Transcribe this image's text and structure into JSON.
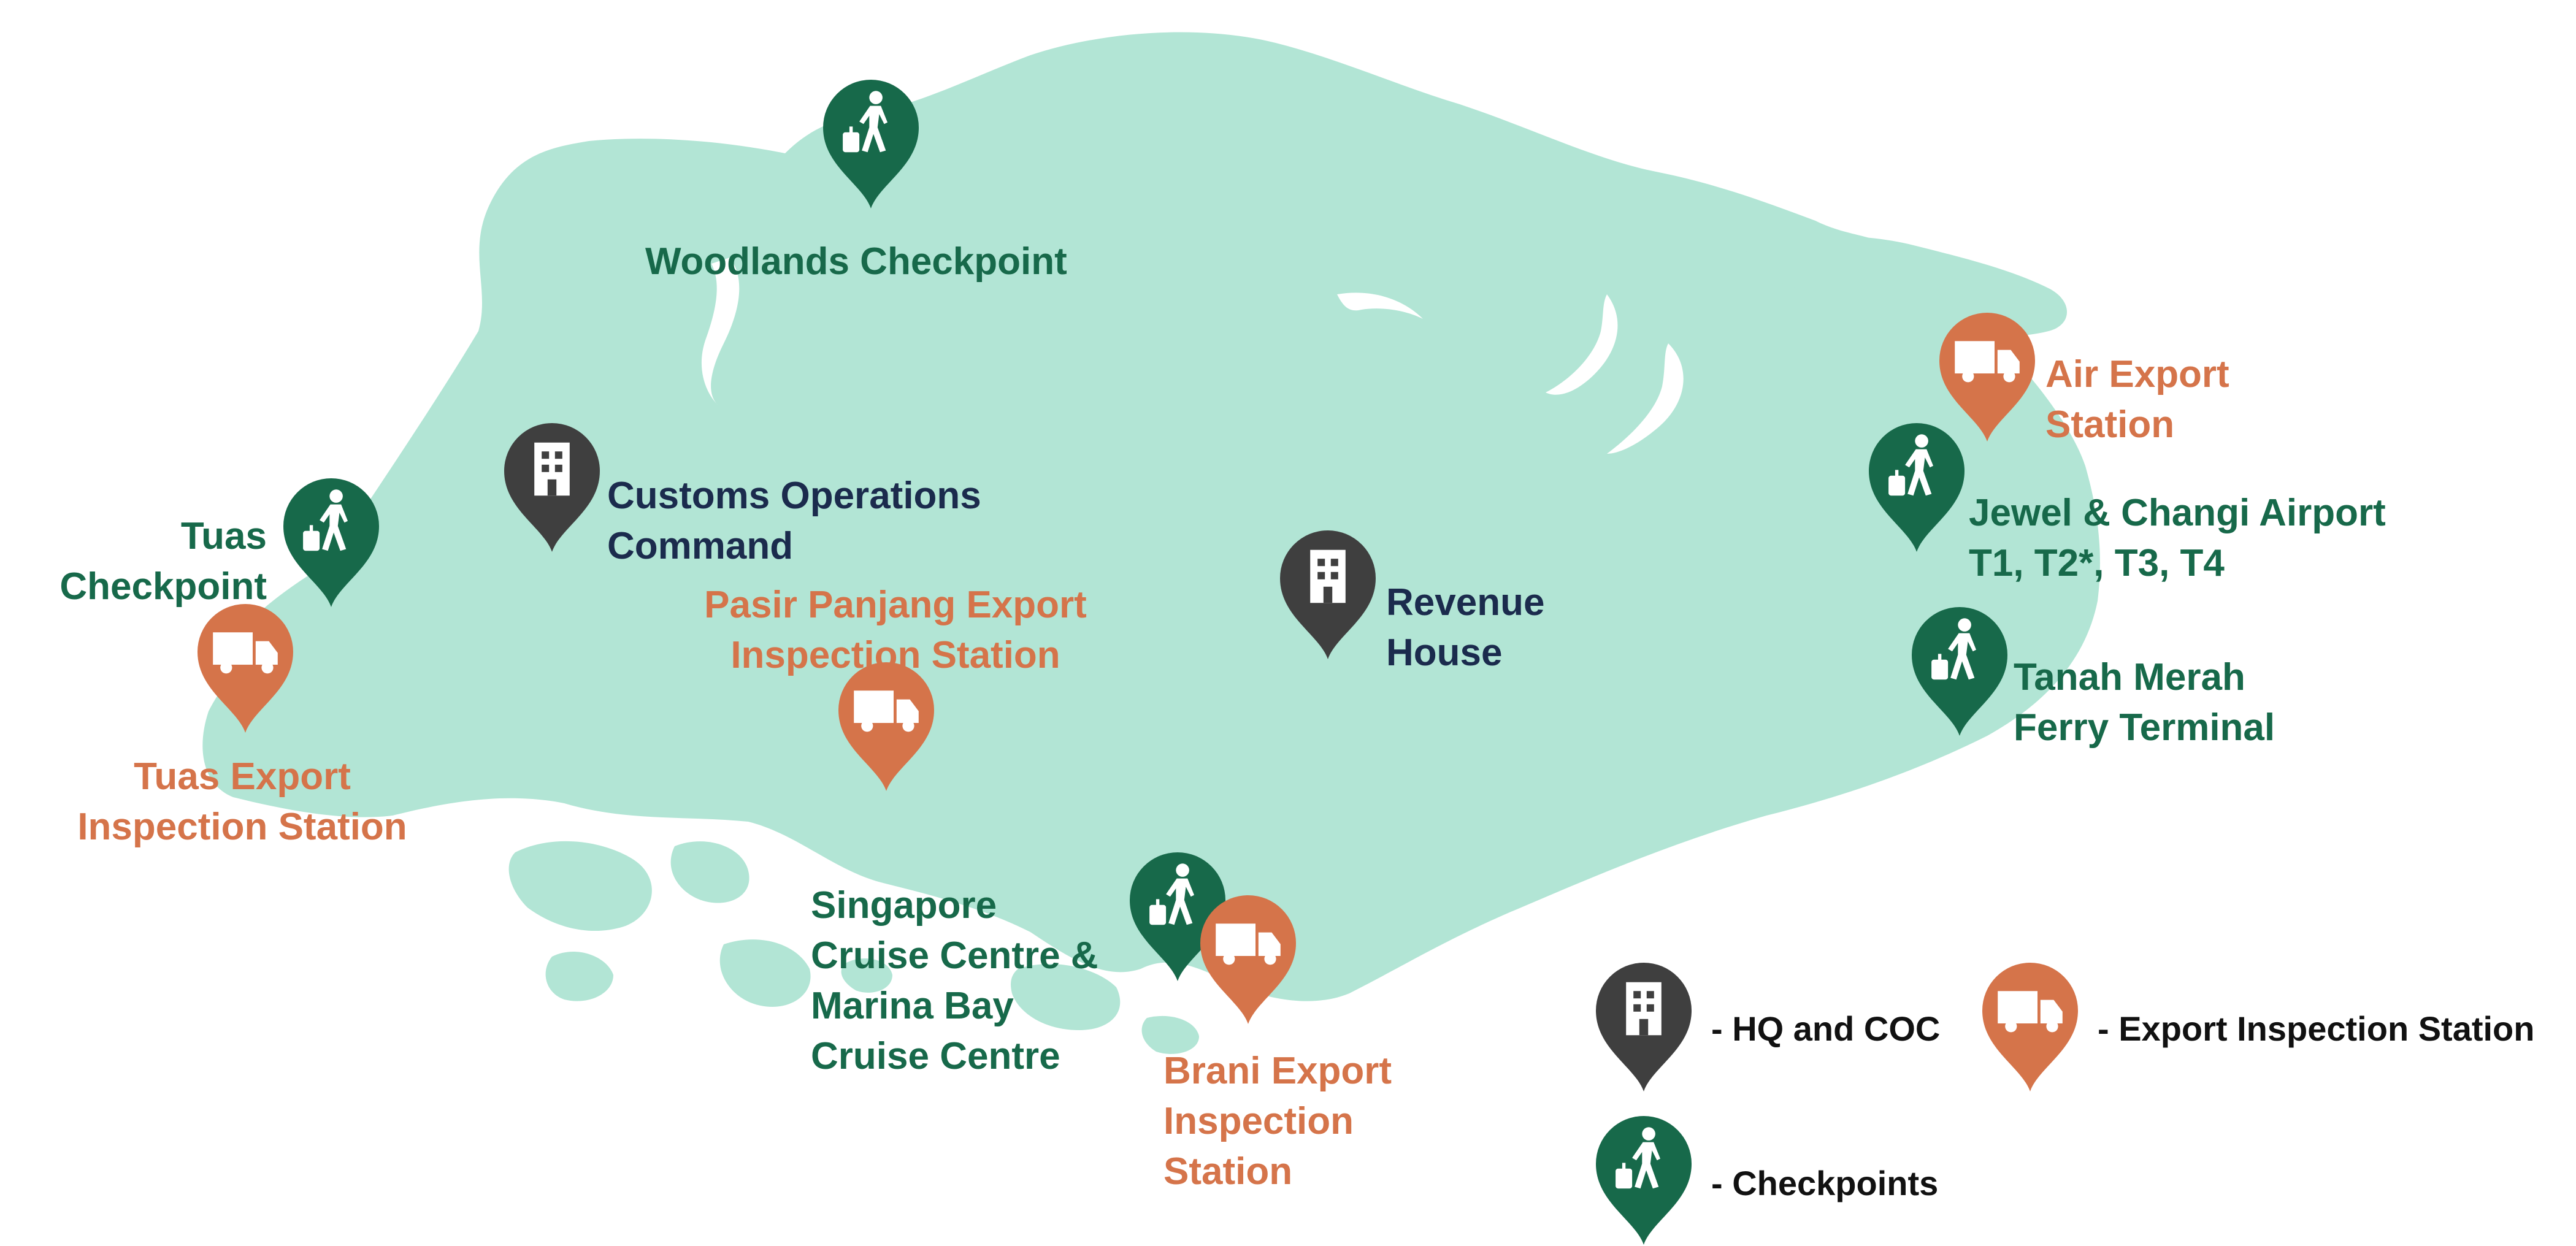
{
  "colors": {
    "land": "#b2e5d5",
    "checkpoint": "#17694a",
    "export_station": "#d5744a",
    "hq": "#3f3f3f",
    "hq_label": "#1b2b4d",
    "icon_fill": "#ffffff"
  },
  "labels": {
    "woodlands": {
      "lines": [
        "Woodlands Checkpoint"
      ]
    },
    "air_export": {
      "lines": [
        "Air Export",
        "Station"
      ]
    },
    "jewel_changi": {
      "lines": [
        "Jewel & Changi Airport",
        "T1, T2*, T3, T4"
      ]
    },
    "tanah_merah": {
      "lines": [
        "Tanah Merah",
        "Ferry Terminal"
      ]
    },
    "customs_ops": {
      "lines": [
        "Customs Operations",
        "Command"
      ]
    },
    "pasir_panjang": {
      "lines": [
        "Pasir Panjang Export",
        "Inspection Station"
      ]
    },
    "revenue_house": {
      "lines": [
        "Revenue",
        "House"
      ]
    },
    "tuas_checkpoint": {
      "lines": [
        "Tuas",
        "Checkpoint"
      ]
    },
    "tuas_export": {
      "lines": [
        "Tuas Export",
        "Inspection Station"
      ]
    },
    "singapore_cruise": {
      "lines": [
        "Singapore",
        "Cruise Centre &",
        "Marina Bay",
        "Cruise Centre"
      ]
    },
    "brani_export": {
      "lines": [
        "Brani Export",
        "Inspection",
        "Station"
      ]
    }
  },
  "legend": {
    "hq": {
      "icon": "building-icon",
      "text": "- HQ and COC"
    },
    "export": {
      "icon": "truck-icon",
      "text": "- Export Inspection Station"
    },
    "checkpoint": {
      "icon": "traveller-icon",
      "text": "- Checkpoints"
    }
  },
  "markers": [
    {
      "id": "woodlands",
      "type": "checkpoint",
      "icon": "traveller-icon"
    },
    {
      "id": "air_export",
      "type": "export_station",
      "icon": "truck-icon"
    },
    {
      "id": "jewel_changi",
      "type": "checkpoint",
      "icon": "traveller-icon"
    },
    {
      "id": "tanah_merah",
      "type": "checkpoint",
      "icon": "traveller-icon"
    },
    {
      "id": "customs_ops",
      "type": "hq",
      "icon": "building-icon"
    },
    {
      "id": "pasir_panjang",
      "type": "export_station",
      "icon": "truck-icon"
    },
    {
      "id": "revenue_house",
      "type": "hq",
      "icon": "building-icon"
    },
    {
      "id": "tuas_checkpoint",
      "type": "checkpoint",
      "icon": "traveller-icon"
    },
    {
      "id": "tuas_export",
      "type": "export_station",
      "icon": "truck-icon"
    },
    {
      "id": "singapore_cruise",
      "type": "checkpoint",
      "icon": "traveller-icon"
    },
    {
      "id": "brani_export",
      "type": "export_station",
      "icon": "truck-icon"
    }
  ]
}
